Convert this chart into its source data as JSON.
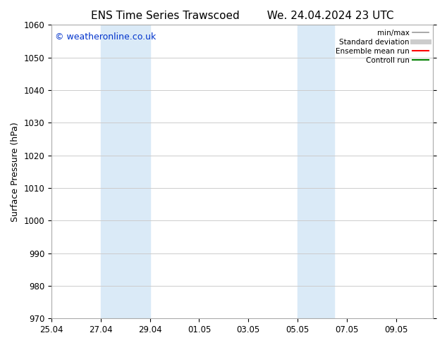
{
  "title_left": "ENS Time Series Trawscoed",
  "title_right": "We. 24.04.2024 23 UTC",
  "ylabel": "Surface Pressure (hPa)",
  "ylim": [
    970,
    1060
  ],
  "yticks": [
    970,
    980,
    990,
    1000,
    1010,
    1020,
    1030,
    1040,
    1050,
    1060
  ],
  "xlim": [
    0,
    15.5
  ],
  "xtick_labels": [
    "25.04",
    "27.04",
    "29.04",
    "01.05",
    "03.05",
    "05.05",
    "07.05",
    "09.05"
  ],
  "xtick_positions": [
    0,
    2,
    4,
    6,
    8,
    10,
    12,
    14
  ],
  "shaded_regions": [
    {
      "start": 2,
      "end": 4,
      "color": "#daeaf7"
    },
    {
      "start": 10,
      "end": 11.5,
      "color": "#daeaf7"
    }
  ],
  "watermark_text": "© weatheronline.co.uk",
  "watermark_color": "#0033cc",
  "legend_items": [
    {
      "label": "min/max",
      "color": "#999999",
      "lw": 1.2
    },
    {
      "label": "Standard deviation",
      "color": "#cccccc",
      "lw": 5
    },
    {
      "label": "Ensemble mean run",
      "color": "#ff0000",
      "lw": 1.5
    },
    {
      "label": "Controll run",
      "color": "#008000",
      "lw": 1.5
    }
  ],
  "bg_color": "#ffffff",
  "grid_color": "#cccccc",
  "title_fontsize": 11,
  "tick_fontsize": 8.5,
  "label_fontsize": 9,
  "watermark_fontsize": 9
}
